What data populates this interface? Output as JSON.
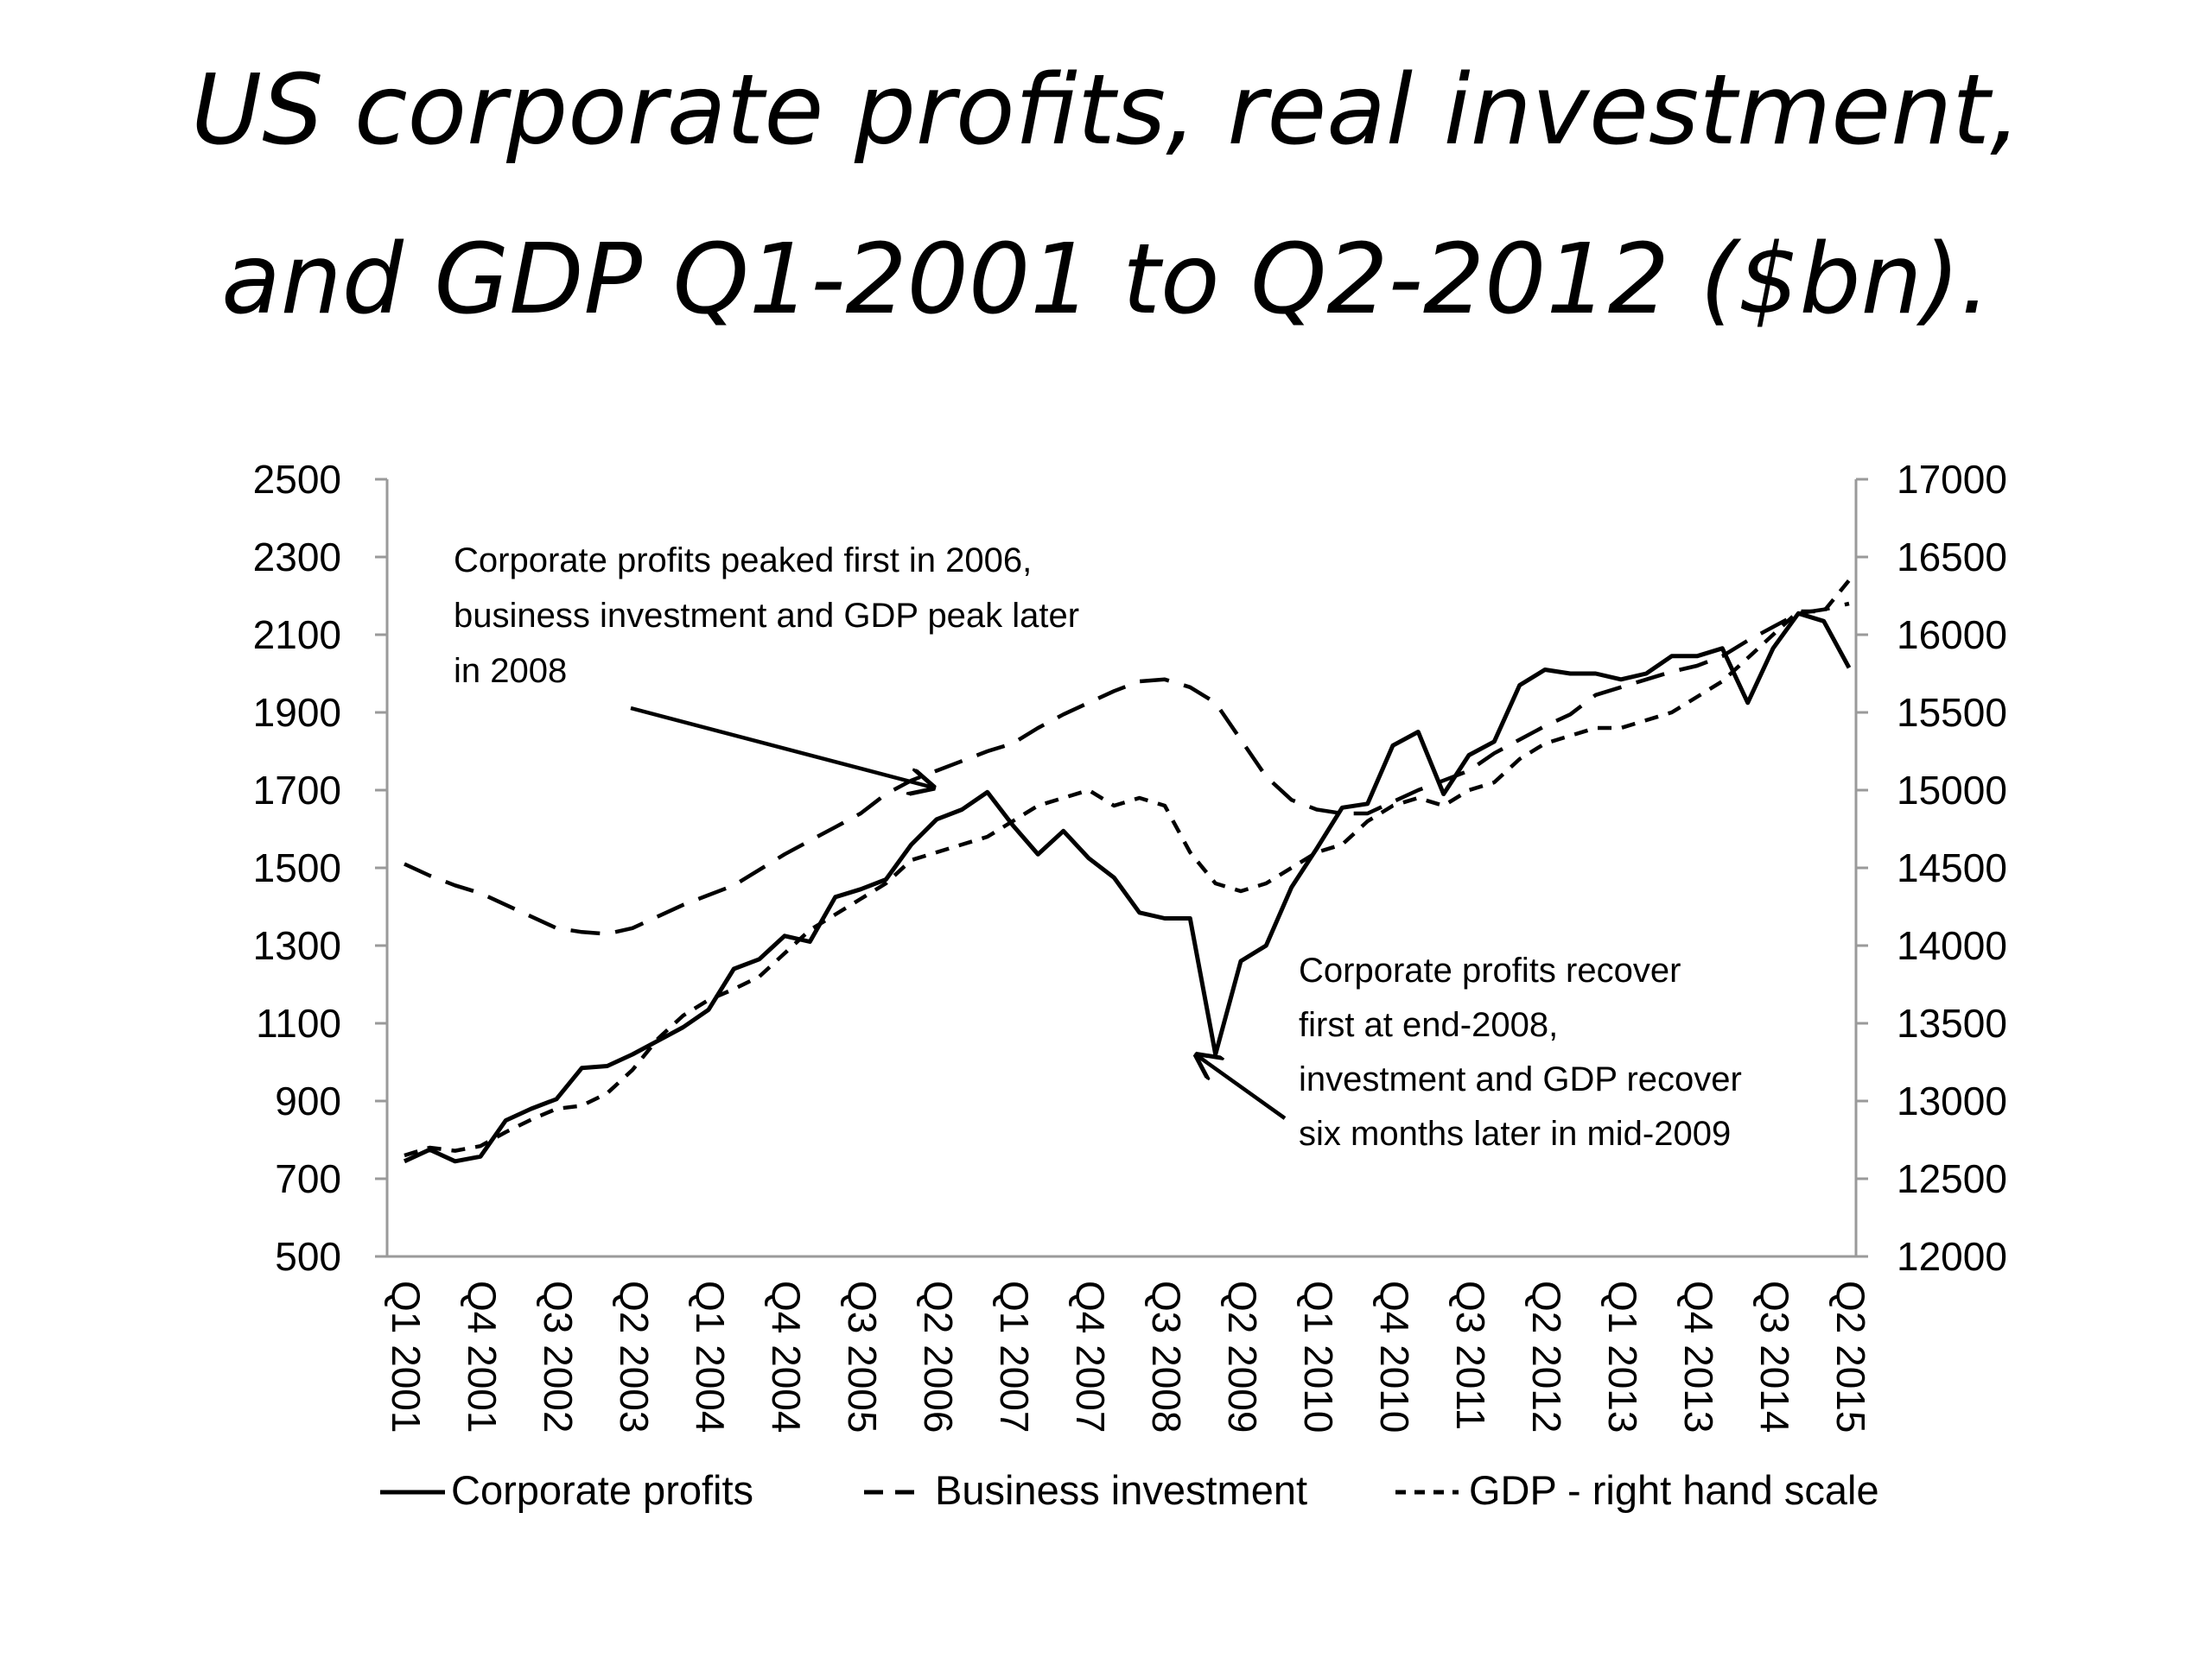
{
  "title": {
    "line1": "US corporate profits, real investment,",
    "line2": "and GDP Q1-2001 to Q2-2012 ($bn)."
  },
  "chart_data": {
    "type": "line",
    "left_axis": {
      "ylim": [
        500,
        2500
      ],
      "ticks": [
        500,
        700,
        900,
        1100,
        1300,
        1500,
        1700,
        1900,
        2100,
        2300,
        2500
      ]
    },
    "right_axis": {
      "ylim": [
        12000,
        17000
      ],
      "ticks": [
        12000,
        12500,
        13000,
        13500,
        14000,
        14500,
        15000,
        15500,
        16000,
        16500,
        17000
      ]
    },
    "x_tick_labels": [
      "Q1 2001",
      "Q4 2001",
      "Q3 2002",
      "Q2 2003",
      "Q1 2004",
      "Q4 2004",
      "Q3 2005",
      "Q2 2006",
      "Q1 2007",
      "Q4 2007",
      "Q3 2008",
      "Q2 2009",
      "Q1 2010",
      "Q4 2010",
      "Q3 2011",
      "Q2 2012",
      "Q1 2013",
      "Q4 2013",
      "Q3 2014",
      "Q2 2015"
    ],
    "quarter_count": 58,
    "grid": false,
    "legend_position": "bottom",
    "series": [
      {
        "name": "Corporate profits",
        "axis": "left",
        "style": "solid",
        "values": [
          745,
          775,
          745,
          757,
          850,
          880,
          905,
          985,
          990,
          1020,
          1055,
          1090,
          1135,
          1240,
          1265,
          1325,
          1310,
          1425,
          1445,
          1470,
          1560,
          1625,
          1650,
          1695,
          1610,
          1535,
          1595,
          1525,
          1475,
          1385,
          1370,
          1370,
          1020,
          1260,
          1300,
          1450,
          1550,
          1655,
          1665,
          1815,
          1850,
          1690,
          1790,
          1825,
          1970,
          2010,
          2000,
          2000,
          1985,
          2000,
          2045,
          2045,
          2065,
          1925,
          2065,
          2155,
          2135,
          2015
        ]
      },
      {
        "name": "Business investment",
        "axis": "left",
        "style": "dashed",
        "values": [
          1510,
          1480,
          1455,
          1435,
          1405,
          1375,
          1345,
          1335,
          1330,
          1345,
          1375,
          1405,
          1430,
          1455,
          1495,
          1535,
          1570,
          1605,
          1640,
          1690,
          1725,
          1750,
          1775,
          1800,
          1820,
          1860,
          1895,
          1925,
          1955,
          1980,
          1985,
          1965,
          1925,
          1830,
          1735,
          1675,
          1650,
          1640,
          1640,
          1670,
          1700,
          1725,
          1750,
          1795,
          1830,
          1865,
          1895,
          1945,
          1965,
          1985,
          2005,
          2020,
          2045,
          2085,
          2120,
          2155,
          2165,
          2180
        ]
      },
      {
        "name": "GDP - right hand scale",
        "axis": "right",
        "style": "short-dashed",
        "values": [
          12650,
          12700,
          12680,
          12710,
          12800,
          12880,
          12950,
          12970,
          13050,
          13200,
          13400,
          13550,
          13650,
          13720,
          13800,
          13950,
          14100,
          14200,
          14300,
          14400,
          14550,
          14600,
          14650,
          14700,
          14800,
          14900,
          14950,
          15000,
          14900,
          14950,
          14900,
          14600,
          14400,
          14350,
          14400,
          14500,
          14600,
          14650,
          14800,
          14900,
          14950,
          14900,
          15000,
          15050,
          15200,
          15300,
          15350,
          15400,
          15400,
          15450,
          15500,
          15600,
          15700,
          15850,
          16000,
          16150,
          16150,
          16350
        ]
      }
    ],
    "annotations": [
      {
        "lines": [
          "Corporate profits peaked first in 2006,",
          "business investment and GDP peak later",
          "in 2008"
        ]
      },
      {
        "lines": [
          "Corporate profits recover",
          "first at end-2008,",
          "investment and GDP recover",
          "six months later in mid-2009"
        ]
      }
    ]
  }
}
